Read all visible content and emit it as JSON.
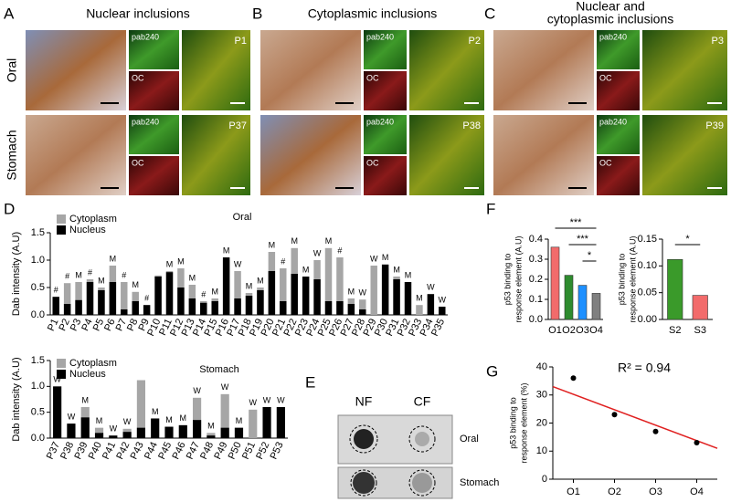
{
  "panel_labels": [
    "A",
    "B",
    "C",
    "D",
    "E",
    "F",
    "G"
  ],
  "images": {
    "titles": [
      [
        "Nuclear inclusions"
      ],
      [
        "Cytoplasmic inclusions"
      ],
      [
        "Nuclear and",
        "cytoplasmic inclusions"
      ]
    ],
    "rows": [
      "Oral",
      "Stomach"
    ],
    "stain_labels": [
      "pab240",
      "OC"
    ],
    "patients": [
      [
        "P1",
        "P37"
      ],
      [
        "P2",
        "P38"
      ],
      [
        "P3",
        "P39"
      ]
    ]
  },
  "blot": {
    "columns": [
      "NF",
      "CF"
    ],
    "rows": [
      "Oral",
      "Stomach"
    ]
  },
  "chart_data": [
    {
      "type": "bar",
      "title": "Oral",
      "y_label": [
        "Dab intensity (A.U)"
      ],
      "categories": [
        "P1",
        "P2",
        "P3",
        "P4",
        "P5",
        "P6",
        "P7",
        "P8",
        "P9",
        "P10",
        "P11",
        "P12",
        "P13",
        "P14",
        "P15",
        "P16",
        "P17",
        "P18",
        "P19",
        "P20",
        "P21",
        "P22",
        "P23",
        "P24",
        "P25",
        "P26",
        "P27",
        "P28",
        "P29",
        "P30",
        "P31",
        "P32",
        "P33",
        "P34",
        "P35"
      ],
      "series": [
        {
          "name": "Cytoplasm",
          "color": "#a6a6a6",
          "values": [
            null,
            0.58,
            0.6,
            0.65,
            0.5,
            0.9,
            0.6,
            0.42,
            null,
            0.72,
            0.8,
            0.85,
            0.55,
            0.25,
            0.3,
            1.0,
            0.8,
            0.4,
            0.5,
            1.15,
            0.85,
            1.22,
            0.7,
            1.0,
            1.22,
            1.05,
            0.3,
            0.28,
            0.9,
            0.85,
            0.7,
            null,
            0.18,
            null,
            null
          ]
        },
        {
          "name": "Nucleus",
          "color": "#000000",
          "values": [
            0.33,
            0.2,
            0.27,
            0.6,
            0.45,
            0.6,
            0.1,
            0.25,
            0.18,
            0.7,
            0.78,
            0.5,
            0.3,
            0.22,
            0.25,
            1.05,
            0.3,
            0.35,
            0.45,
            0.8,
            0.25,
            0.75,
            0.7,
            0.65,
            0.25,
            0.25,
            0.2,
            0.1,
            null,
            0.92,
            0.65,
            0.6,
            null,
            0.38,
            0.15
          ]
        }
      ],
      "annotations": [
        "#",
        "#",
        "M",
        "#",
        "M",
        "M",
        "#",
        "M",
        "#",
        null,
        "M",
        "M",
        "M",
        "#",
        "M",
        "M",
        "W",
        "M",
        "M",
        "M",
        "#",
        "M",
        "M",
        "W",
        "M",
        "#",
        "M",
        "W",
        "W",
        "M",
        "M",
        "M",
        "M",
        "W",
        "W"
      ],
      "ylim": [
        0,
        1.5
      ],
      "yticks": [
        {
          "value": 0,
          "label": "0.0"
        },
        0.5,
        {
          "value": 1,
          "label": "1.0"
        },
        1.5
      ],
      "legend": "upper left"
    },
    {
      "type": "bar",
      "title": "Stomach",
      "y_label": [
        "Dab intensity (A.U)"
      ],
      "categories": [
        "P37",
        "P38",
        "P39",
        "P40",
        "P41",
        "P42",
        "P43",
        "P44",
        "P45",
        "P46",
        "P47",
        "P48",
        "P49",
        "P50",
        "P51",
        "P52",
        "P53"
      ],
      "series": [
        {
          "name": "Cytoplasm",
          "color": "#a6a6a6",
          "values": [
            null,
            0.28,
            0.6,
            0.2,
            null,
            0.18,
            1.12,
            null,
            null,
            null,
            0.78,
            0.1,
            0.85,
            0.2,
            0.55,
            null,
            null
          ]
        },
        {
          "name": "Nucleus",
          "color": "#000000",
          "values": [
            1.0,
            0.28,
            0.4,
            0.1,
            0.05,
            0.12,
            0.2,
            0.38,
            0.22,
            0.25,
            0.35,
            0.05,
            0.2,
            0.2,
            null,
            0.6,
            0.6
          ]
        }
      ],
      "annotations": [
        "W",
        "W",
        "M",
        "M",
        "W",
        "W",
        null,
        "M",
        "M",
        "M",
        "W",
        "M",
        "W",
        "M",
        "W",
        "W",
        "W"
      ],
      "ylim": [
        0,
        1.5
      ],
      "yticks": [
        {
          "value": 0,
          "label": "0.0"
        },
        0.5,
        {
          "value": 1,
          "label": "1.0"
        },
        1.5
      ],
      "legend": "upper left"
    },
    {
      "type": "bar",
      "y_label": [
        "p53 binding to",
        "response element (A.U)"
      ],
      "categories": [
        "O1",
        "O2",
        "O3",
        "O4"
      ],
      "values": [
        0.36,
        0.22,
        0.17,
        0.13
      ],
      "colors": [
        "#f26b6b",
        "#2e8b2e",
        "#1e90ff",
        "#808080"
      ],
      "ylim": [
        0,
        0.4
      ],
      "yticks": [
        {
          "value": 0,
          "label": "0.0"
        },
        0.1,
        0.2,
        0.3,
        0.4
      ],
      "significance": [
        "***",
        "***",
        "*"
      ]
    },
    {
      "type": "bar",
      "y_label": [
        "p53 binding to",
        "response element (A.U)"
      ],
      "categories": [
        "S2",
        "S3"
      ],
      "values": [
        0.112,
        0.045
      ],
      "colors": [
        "#3a9a2a",
        "#f26b6b"
      ],
      "ylim": [
        0,
        0.15
      ],
      "yticks": [
        {
          "value": 0,
          "label": "0.00"
        },
        0.05,
        {
          "value": 0.1,
          "label": "0.10"
        },
        0.15
      ],
      "significance": [
        "*"
      ]
    },
    {
      "type": "scatter",
      "y_label": [
        "p53 binding to",
        "response element (%)"
      ],
      "categories": [
        "O1",
        "O2",
        "O3",
        "O4"
      ],
      "values": [
        36,
        23,
        17,
        13
      ],
      "color": "#000000",
      "trendline": [
        33,
        11
      ],
      "trend_color": "#e02020",
      "annotation": "R² = 0.94",
      "ylim": [
        0,
        40
      ],
      "yticks": [
        0,
        10,
        20,
        30,
        40
      ]
    }
  ]
}
